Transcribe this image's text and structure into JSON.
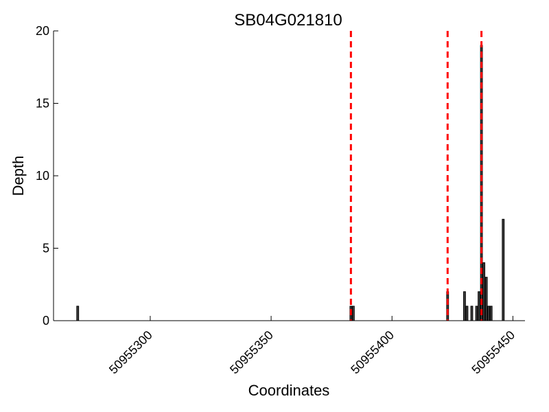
{
  "chart_data": {
    "type": "bar",
    "title": "SB04G021810",
    "xlabel": "Coordinates",
    "ylabel": "Depth",
    "xlim": [
      50955260,
      50955455
    ],
    "ylim": [
      0,
      20
    ],
    "xticks": [
      50955300,
      50955350,
      50955400,
      50955450
    ],
    "xtick_labels": [
      "50955300",
      "50955350",
      "50955400",
      "50955450"
    ],
    "yticks": [
      0,
      5,
      10,
      15,
      20
    ],
    "ytick_labels": [
      "0",
      "5",
      "10",
      "15",
      "20"
    ],
    "grid": false,
    "bar_color": "#404040",
    "bar_edge_color": "#000000",
    "vline_color": "#ff0000",
    "bars": [
      {
        "x": 50955270,
        "y": 1
      },
      {
        "x": 50955383,
        "y": 1
      },
      {
        "x": 50955384,
        "y": 1
      },
      {
        "x": 50955423,
        "y": 2
      },
      {
        "x": 50955430,
        "y": 2
      },
      {
        "x": 50955431,
        "y": 1
      },
      {
        "x": 50955433,
        "y": 1
      },
      {
        "x": 50955435,
        "y": 1
      },
      {
        "x": 50955436,
        "y": 2
      },
      {
        "x": 50955437,
        "y": 19
      },
      {
        "x": 50955438,
        "y": 4
      },
      {
        "x": 50955439,
        "y": 3
      },
      {
        "x": 50955440,
        "y": 1
      },
      {
        "x": 50955441,
        "y": 1
      },
      {
        "x": 50955446,
        "y": 7
      }
    ],
    "vlines": [
      50955383,
      50955423,
      50955437
    ]
  }
}
